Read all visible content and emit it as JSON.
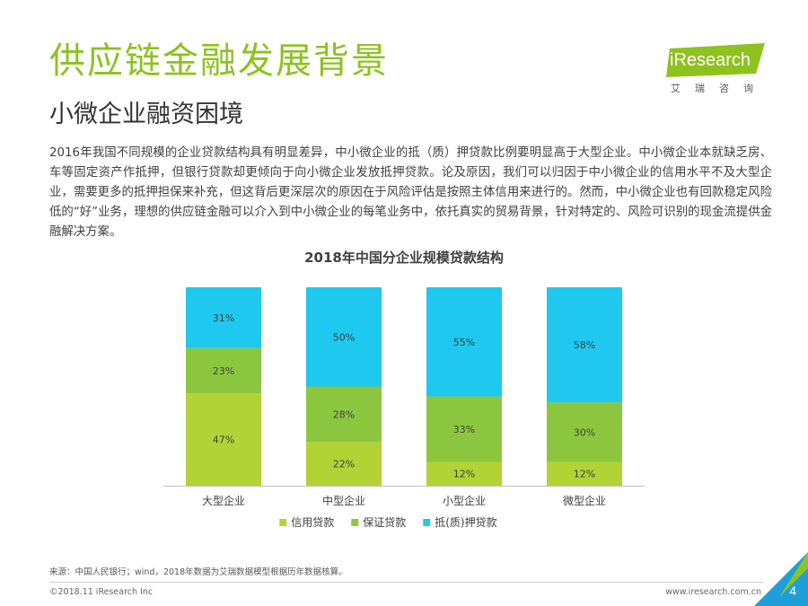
{
  "header": {
    "title": "供应链金融发展背景",
    "subtitle": "小微企业融资困境"
  },
  "logo": {
    "name": "iResearch",
    "cn": "艾瑞咨询"
  },
  "intro": "2016年我国不同规模的企业贷款结构具有明显差异，中小微企业的抵（质）押贷款比例要明显高于大型企业。中小微企业本就缺乏房、车等固定资产作抵押，但银行贷款却更倾向于向小微企业发放抵押贷款。论及原因，我们可以归因于中小微企业的信用水平不及大型企业，需要更多的抵押担保来补充，但这背后更深层次的原因在于风险评估是按照主体信用来进行的。然而，中小微企业也有回款稳定风险低的“好”业务，理想的供应链金融可以介入到中小微企业的每笔业务中，依托真实的贸易背景，针对特定的、风险可识别的现金流提供金融解决方案。",
  "chart_data": {
    "type": "bar",
    "stacked": true,
    "percent": true,
    "title": "2018年中国分企业规模贷款结构",
    "categories": [
      "大型企业",
      "中型企业",
      "小型企业",
      "微型企业"
    ],
    "series": [
      {
        "name": "信用贷款",
        "color": "#b2d235",
        "values": [
          47,
          22,
          12,
          12
        ]
      },
      {
        "name": "保证贷款",
        "color": "#8cc63f",
        "values": [
          23,
          28,
          33,
          30
        ]
      },
      {
        "name": "抵(质)押贷款",
        "color": "#1ec8ee",
        "values": [
          31,
          50,
          55,
          58
        ]
      }
    ],
    "ylim": [
      0,
      100
    ],
    "legend": "bottom",
    "xlabel": "",
    "ylabel": ""
  },
  "footer": {
    "source": "来源：中国人民银行；wind，2018年数据为艾瑞数据模型根据历年数据核算。",
    "copyright": "©2018.11 iResearch Inc",
    "website": "www.iresearch.com.cn",
    "page": "4"
  },
  "colors": {
    "brand_green": "#8dc21f",
    "corner_blue": "#1e9fd8"
  }
}
